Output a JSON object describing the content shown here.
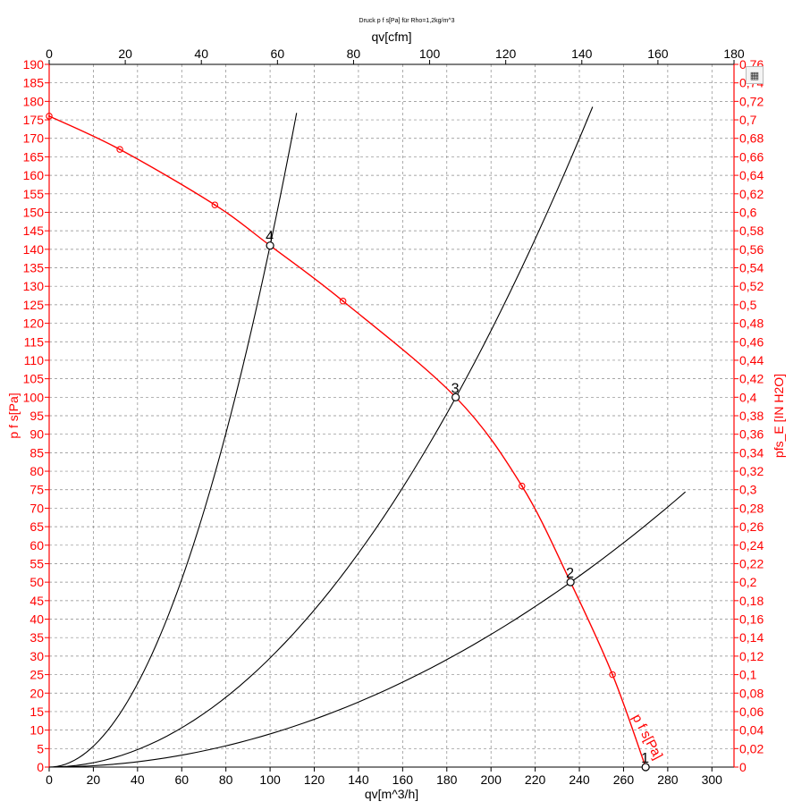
{
  "chart_data": {
    "type": "line",
    "title": "Druck p f s[Pa] für Rho=1,2kg/m^3",
    "xlabel": "qv[m^3/h]",
    "x2label": "qv[cfm]",
    "ylabel": "p f s[Pa]",
    "y2label": "pfs_E [IN H2O]",
    "xlim": [
      0,
      310
    ],
    "ylim": [
      0,
      190
    ],
    "x2lim": [
      0,
      180
    ],
    "y2lim": [
      0,
      0.76
    ],
    "x_ticks": [
      "0",
      "20",
      "40",
      "60",
      "80",
      "100",
      "120",
      "140",
      "160",
      "180",
      "200",
      "220",
      "240",
      "260",
      "280",
      "300"
    ],
    "x2_ticks": [
      "0",
      "20",
      "40",
      "60",
      "80",
      "100",
      "120",
      "140",
      "160",
      "180"
    ],
    "y_ticks": [
      "0",
      "5",
      "10",
      "15",
      "20",
      "25",
      "30",
      "35",
      "40",
      "45",
      "50",
      "55",
      "60",
      "65",
      "70",
      "75",
      "80",
      "85",
      "90",
      "95",
      "100",
      "105",
      "110",
      "115",
      "120",
      "125",
      "130",
      "135",
      "140",
      "145",
      "150",
      "155",
      "160",
      "165",
      "170",
      "175",
      "180",
      "185",
      "190"
    ],
    "y2_ticks": [
      "0",
      "0,02",
      "0,04",
      "0,06",
      "0,08",
      "0,1",
      "0,12",
      "0,14",
      "0,16",
      "0,18",
      "0,2",
      "0,22",
      "0,24",
      "0,26",
      "0,28",
      "0,3",
      "0,32",
      "0,34",
      "0,36",
      "0,38",
      "0,4",
      "0,42",
      "0,44",
      "0,46",
      "0,48",
      "0,5",
      "0,52",
      "0,54",
      "0,56",
      "0,58",
      "0,6",
      "0,62",
      "0,64",
      "0,66",
      "0,68",
      "0,7",
      "0,72",
      "0,74",
      "0,76"
    ],
    "grid": true,
    "series": [
      {
        "name": "p f s[Pa]",
        "color": "#ff0000",
        "x": [
          0,
          32,
          75,
          100,
          133,
          184,
          214,
          236,
          255,
          270
        ],
        "y": [
          176,
          167,
          152,
          141,
          126,
          100,
          76,
          50,
          25,
          0
        ],
        "markers_x": [
          0,
          32,
          75,
          133,
          214,
          255
        ],
        "markers_y": [
          176,
          167,
          152,
          126,
          76,
          25
        ]
      }
    ],
    "system_curves": [
      {
        "color": "#000000",
        "k": 0.0141,
        "x_max": 112
      },
      {
        "color": "#000000",
        "k": 0.00295,
        "x_max": 246
      },
      {
        "color": "#000000",
        "k": 0.000897,
        "x_max": 288
      }
    ],
    "operating_points": [
      {
        "label": "1",
        "x": 270,
        "y": 0
      },
      {
        "label": "2",
        "x": 236,
        "y": 50
      },
      {
        "label": "3",
        "x": 184,
        "y": 100
      },
      {
        "label": "4",
        "x": 100,
        "y": 141
      }
    ]
  },
  "toolbar": {
    "icon": "table-icon"
  }
}
